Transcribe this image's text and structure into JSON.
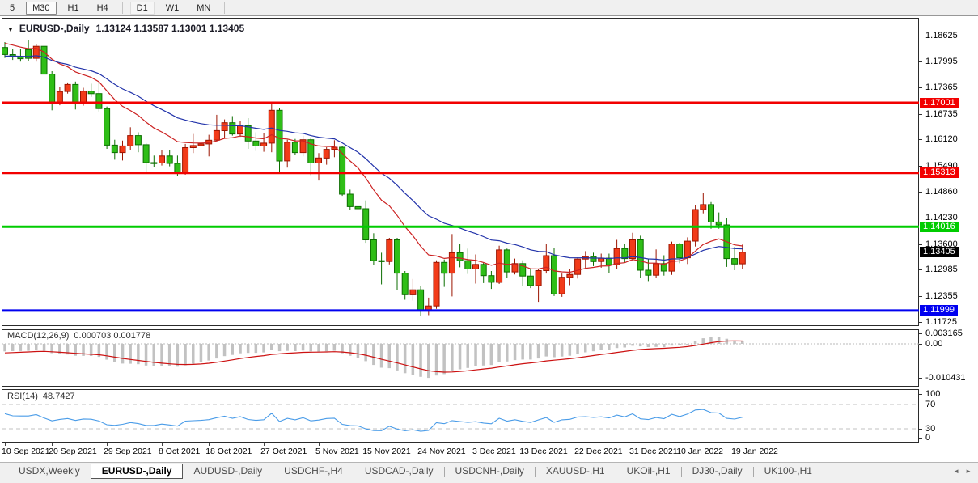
{
  "toolbar": {
    "timeframes": [
      {
        "label": "5",
        "active": false
      },
      {
        "label": "M30",
        "active": true
      },
      {
        "label": "H1",
        "active": false
      },
      {
        "label": "H4",
        "active": false
      },
      {
        "label": "D1",
        "active": false
      },
      {
        "label": "W1",
        "active": false
      },
      {
        "label": "MN",
        "active": false
      }
    ],
    "separators_after": [
      "H4",
      "MN"
    ]
  },
  "chart": {
    "title": {
      "dropdown_icon": "▼",
      "symbol": "EURUSD-,Daily",
      "ohlc": "1.13124 1.13587 1.13001 1.13405"
    },
    "price_axis": {
      "ticks": [
        "1.18625",
        "1.17995",
        "1.17365",
        "1.16735",
        "1.16120",
        "1.15490",
        "1.14860",
        "1.14230",
        "1.13600",
        "1.12985",
        "1.12355",
        "1.11725"
      ]
    },
    "hlines": [
      {
        "label": "1.17001",
        "price": 1.17001,
        "color": "#f20000",
        "width": 3
      },
      {
        "label": "1.15313",
        "price": 1.15313,
        "color": "#f20000",
        "width": 3
      },
      {
        "label": "1.14016",
        "price": 1.14016,
        "color": "#00cc00",
        "width": 3
      },
      {
        "label": "1.11999",
        "price": 1.11999,
        "color": "#0000f0",
        "width": 3
      }
    ],
    "current_price": {
      "label": "1.13405",
      "price": 1.13405,
      "bg": "#000000"
    },
    "date_ticks": [
      {
        "i": 0,
        "label": "10 Sep 2021"
      },
      {
        "i": 6,
        "label": "20 Sep 2021"
      },
      {
        "i": 13,
        "label": "29 Sep 2021"
      },
      {
        "i": 20,
        "label": "8 Oct 2021"
      },
      {
        "i": 26,
        "label": "18 Oct 2021"
      },
      {
        "i": 33,
        "label": "27 Oct 2021"
      },
      {
        "i": 40,
        "label": "5 Nov 2021"
      },
      {
        "i": 46,
        "label": "15 Nov 2021"
      },
      {
        "i": 53,
        "label": "24 Nov 2021"
      },
      {
        "i": 60,
        "label": "3 Dec 2021"
      },
      {
        "i": 66,
        "label": "13 Dec 2021"
      },
      {
        "i": 73,
        "label": "22 Dec 2021"
      },
      {
        "i": 80,
        "label": "31 Dec 2021"
      },
      {
        "i": 86,
        "label": "10 Jan 2022"
      },
      {
        "i": 93,
        "label": "19 Jan 2022"
      }
    ]
  },
  "indicators": {
    "macd": {
      "name": "MACD(12,26,9)",
      "values": "0.000703 0.001778",
      "axis": [
        {
          "label": "0.003165",
          "value": 0.003165
        },
        {
          "label": "0.00",
          "value": 0
        },
        {
          "label": "-0.010431",
          "value": -0.010431
        }
      ],
      "histogram_color": "#c2c2c2",
      "signal_color": "#cc1111"
    },
    "rsi": {
      "name": "RSI(14)",
      "value": "48.7427",
      "axis": [
        {
          "label": "100",
          "value": 100
        },
        {
          "label": "70",
          "value": 70
        },
        {
          "label": "30",
          "value": 30
        },
        {
          "label": "0",
          "value": 0
        }
      ],
      "levels": [
        70,
        30
      ],
      "line_color": "#4a9ce8"
    }
  },
  "chart_data": {
    "type": "candlestick",
    "symbol": "EURUSD-,Daily",
    "ohlc_current": {
      "open": 1.13124,
      "high": 1.13587,
      "low": 1.13001,
      "close": 1.13405
    },
    "x_range": [
      "10 Sep 2021",
      "20 Jan 2022"
    ],
    "y_range": [
      1.113,
      1.1905
    ],
    "levels": [
      1.17001,
      1.15313,
      1.14016,
      1.11999
    ],
    "colors": {
      "bull": "#f23b19",
      "bull_border": "#9b1400",
      "bear": "#2fbe17",
      "bear_border": "#0c6e00",
      "ma_fast": "#cc2222",
      "ma_slow": "#2233aa"
    },
    "moving_averages": [
      {
        "type": "ema",
        "period": 13,
        "color": "#cc2222"
      },
      {
        "type": "ema",
        "period": 26,
        "color": "#2233aa"
      }
    ],
    "candles": [
      [
        1.1833,
        1.1846,
        1.1808,
        1.1816
      ],
      [
        1.1816,
        1.1829,
        1.1803,
        1.1811
      ],
      [
        1.1811,
        1.183,
        1.1799,
        1.1806
      ],
      [
        1.1828,
        1.1852,
        1.1801,
        1.1807
      ],
      [
        1.1807,
        1.1841,
        1.1799,
        1.1836
      ],
      [
        1.1836,
        1.1839,
        1.1761,
        1.1769
      ],
      [
        1.1769,
        1.1776,
        1.1682,
        1.17
      ],
      [
        1.17,
        1.1739,
        1.1694,
        1.1727
      ],
      [
        1.1727,
        1.1749,
        1.1722,
        1.1744
      ],
      [
        1.1744,
        1.1751,
        1.1684,
        1.1701
      ],
      [
        1.1701,
        1.1736,
        1.1693,
        1.1728
      ],
      [
        1.1728,
        1.1746,
        1.1714,
        1.1722
      ],
      [
        1.1722,
        1.1751,
        1.1679,
        1.1686
      ],
      [
        1.1686,
        1.1691,
        1.1589,
        1.1598
      ],
      [
        1.1598,
        1.1611,
        1.1563,
        1.158
      ],
      [
        1.158,
        1.1609,
        1.1561,
        1.1596
      ],
      [
        1.1596,
        1.1641,
        1.1587,
        1.1621
      ],
      [
        1.1621,
        1.1629,
        1.1581,
        1.1599
      ],
      [
        1.1599,
        1.1603,
        1.1529,
        1.1556
      ],
      [
        1.1556,
        1.1573,
        1.1545,
        1.1555
      ],
      [
        1.1555,
        1.1587,
        1.1549,
        1.1572
      ],
      [
        1.1572,
        1.1587,
        1.1547,
        1.1554
      ],
      [
        1.1554,
        1.1573,
        1.1524,
        1.1531
      ],
      [
        1.1531,
        1.1601,
        1.1527,
        1.1592
      ],
      [
        1.1592,
        1.1625,
        1.1579,
        1.1597
      ],
      [
        1.1597,
        1.1623,
        1.1587,
        1.1601
      ],
      [
        1.1601,
        1.1623,
        1.1571,
        1.161
      ],
      [
        1.161,
        1.1671,
        1.1608,
        1.1633
      ],
      [
        1.1633,
        1.166,
        1.1616,
        1.1652
      ],
      [
        1.1652,
        1.1668,
        1.1621,
        1.1625
      ],
      [
        1.1625,
        1.1657,
        1.1618,
        1.1645
      ],
      [
        1.1645,
        1.1663,
        1.1589,
        1.1608
      ],
      [
        1.1608,
        1.1629,
        1.1584,
        1.1596
      ],
      [
        1.1596,
        1.1627,
        1.1582,
        1.1603
      ],
      [
        1.1603,
        1.1697,
        1.1581,
        1.1682
      ],
      [
        1.1682,
        1.1687,
        1.1534,
        1.156
      ],
      [
        1.156,
        1.1611,
        1.1544,
        1.1605
      ],
      [
        1.1605,
        1.1613,
        1.1574,
        1.158
      ],
      [
        1.158,
        1.1621,
        1.1571,
        1.1611
      ],
      [
        1.1611,
        1.1617,
        1.1526,
        1.1555
      ],
      [
        1.1555,
        1.1579,
        1.1513,
        1.1567
      ],
      [
        1.1567,
        1.1593,
        1.1551,
        1.1588
      ],
      [
        1.1588,
        1.161,
        1.1569,
        1.1593
      ],
      [
        1.1593,
        1.1596,
        1.1476,
        1.148
      ],
      [
        1.148,
        1.1491,
        1.1442,
        1.145
      ],
      [
        1.145,
        1.1469,
        1.1431,
        1.1445
      ],
      [
        1.1445,
        1.1465,
        1.1363,
        1.137
      ],
      [
        1.137,
        1.1386,
        1.1309,
        1.132
      ],
      [
        1.132,
        1.1339,
        1.1263,
        1.1318
      ],
      [
        1.1318,
        1.1375,
        1.1311,
        1.137
      ],
      [
        1.137,
        1.1375,
        1.1249,
        1.129
      ],
      [
        1.129,
        1.1295,
        1.1226,
        1.1238
      ],
      [
        1.1238,
        1.1276,
        1.1224,
        1.125
      ],
      [
        1.125,
        1.1259,
        1.1186,
        1.1201
      ],
      [
        1.1201,
        1.1231,
        1.1189,
        1.1211
      ],
      [
        1.1211,
        1.1321,
        1.1204,
        1.1316
      ],
      [
        1.1316,
        1.1323,
        1.1257,
        1.129
      ],
      [
        1.129,
        1.1384,
        1.1234,
        1.1339
      ],
      [
        1.1339,
        1.1361,
        1.1304,
        1.132
      ],
      [
        1.132,
        1.1349,
        1.1288,
        1.13
      ],
      [
        1.13,
        1.1335,
        1.1265,
        1.1311
      ],
      [
        1.1311,
        1.1315,
        1.1266,
        1.1284
      ],
      [
        1.1284,
        1.1295,
        1.1252,
        1.1268
      ],
      [
        1.1268,
        1.1356,
        1.1264,
        1.1346
      ],
      [
        1.1346,
        1.1349,
        1.1279,
        1.1293
      ],
      [
        1.1293,
        1.1325,
        1.1287,
        1.1313
      ],
      [
        1.1313,
        1.1321,
        1.1259,
        1.1283
      ],
      [
        1.1283,
        1.1299,
        1.1254,
        1.126
      ],
      [
        1.126,
        1.1301,
        1.1221,
        1.1296
      ],
      [
        1.1296,
        1.1361,
        1.1289,
        1.1332
      ],
      [
        1.1332,
        1.1351,
        1.1235,
        1.124
      ],
      [
        1.124,
        1.1289,
        1.1233,
        1.128
      ],
      [
        1.128,
        1.1299,
        1.1261,
        1.1287
      ],
      [
        1.1287,
        1.1328,
        1.1277,
        1.1324
      ],
      [
        1.1324,
        1.1343,
        1.1299,
        1.133
      ],
      [
        1.133,
        1.1339,
        1.1307,
        1.1318
      ],
      [
        1.1318,
        1.1337,
        1.1303,
        1.1326
      ],
      [
        1.1326,
        1.1337,
        1.129,
        1.131
      ],
      [
        1.131,
        1.137,
        1.1299,
        1.1349
      ],
      [
        1.1349,
        1.1361,
        1.1315,
        1.1325
      ],
      [
        1.1325,
        1.1387,
        1.1319,
        1.137
      ],
      [
        1.137,
        1.138,
        1.1278,
        1.1297
      ],
      [
        1.1297,
        1.1324,
        1.1271,
        1.1285
      ],
      [
        1.1285,
        1.1347,
        1.1279,
        1.1313
      ],
      [
        1.1313,
        1.1333,
        1.1284,
        1.1295
      ],
      [
        1.1295,
        1.1366,
        1.1286,
        1.136
      ],
      [
        1.136,
        1.1363,
        1.1314,
        1.1327
      ],
      [
        1.1327,
        1.1376,
        1.1312,
        1.1367
      ],
      [
        1.1367,
        1.1454,
        1.1354,
        1.1443
      ],
      [
        1.1443,
        1.1483,
        1.1434,
        1.1455
      ],
      [
        1.1455,
        1.1461,
        1.1397,
        1.1413
      ],
      [
        1.1413,
        1.1436,
        1.1397,
        1.1406
      ],
      [
        1.1406,
        1.1423,
        1.1305,
        1.1325
      ],
      [
        1.1325,
        1.1353,
        1.1297,
        1.1312
      ],
      [
        1.13124,
        1.13587,
        1.13001,
        1.13405
      ]
    ]
  },
  "tabs": {
    "items": [
      {
        "label": "USDX,Weekly",
        "active": false
      },
      {
        "label": "EURUSD-,Daily",
        "active": true
      },
      {
        "label": "AUDUSD-,Daily",
        "active": false
      },
      {
        "label": "USDCHF-,H4",
        "active": false
      },
      {
        "label": "USDCAD-,Daily",
        "active": false
      },
      {
        "label": "USDCNH-,Daily",
        "active": false
      },
      {
        "label": "XAUUSD-,H1",
        "active": false
      },
      {
        "label": "UKOil-,H1",
        "active": false
      },
      {
        "label": "DJ30-,Daily",
        "active": false
      },
      {
        "label": "UK100-,H1",
        "active": false
      }
    ],
    "scroll_left_icon": "◄",
    "scroll_right_icon": "►"
  }
}
